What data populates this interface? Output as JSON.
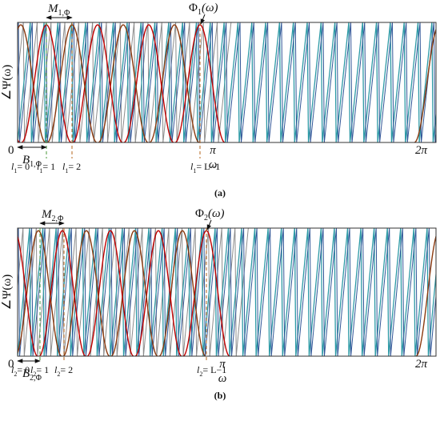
{
  "panels": [
    {
      "y_label": "∠Ψ(ω)",
      "origin": "0",
      "pi": "π",
      "two_pi": "2π",
      "x_label": "ω",
      "spacing": {
        "symbol": "M",
        "subscript": "1,Φ"
      },
      "bandwidth": {
        "symbol": "B",
        "subscript": "1,Φ"
      },
      "filter": {
        "symbol": "Φ",
        "subscript": "1",
        "argument": "(ω)"
      },
      "indices": [
        {
          "symbol": "l",
          "subscript": "1",
          "equation": "= 0"
        },
        {
          "symbol": "l",
          "subscript": "1",
          "equation": "= 1"
        },
        {
          "symbol": "l",
          "subscript": "1",
          "equation": "= 2"
        },
        {
          "symbol": "l",
          "subscript": "1",
          "equation": "= L−1"
        }
      ],
      "caption": "(a)"
    },
    {
      "y_label": "∠Ψ(ω)",
      "origin": "0",
      "pi": "π",
      "two_pi": "2π",
      "x_label": "ω",
      "spacing": {
        "symbol": "M",
        "subscript": "2,Φ"
      },
      "bandwidth": {
        "symbol": "B",
        "subscript": "2,Φ"
      },
      "filter": {
        "symbol": "Φ",
        "subscript": "2",
        "argument": "(ω)"
      },
      "indices": [
        {
          "symbol": "l",
          "subscript": "2",
          "equation": "= 0"
        },
        {
          "symbol": "l",
          "subscript": "2",
          "equation": "= 1"
        },
        {
          "symbol": "l",
          "subscript": "2",
          "equation": "= 2"
        },
        {
          "symbol": "l",
          "subscript": "2",
          "equation": "= L−1"
        }
      ],
      "caption": "(b)"
    }
  ]
}
